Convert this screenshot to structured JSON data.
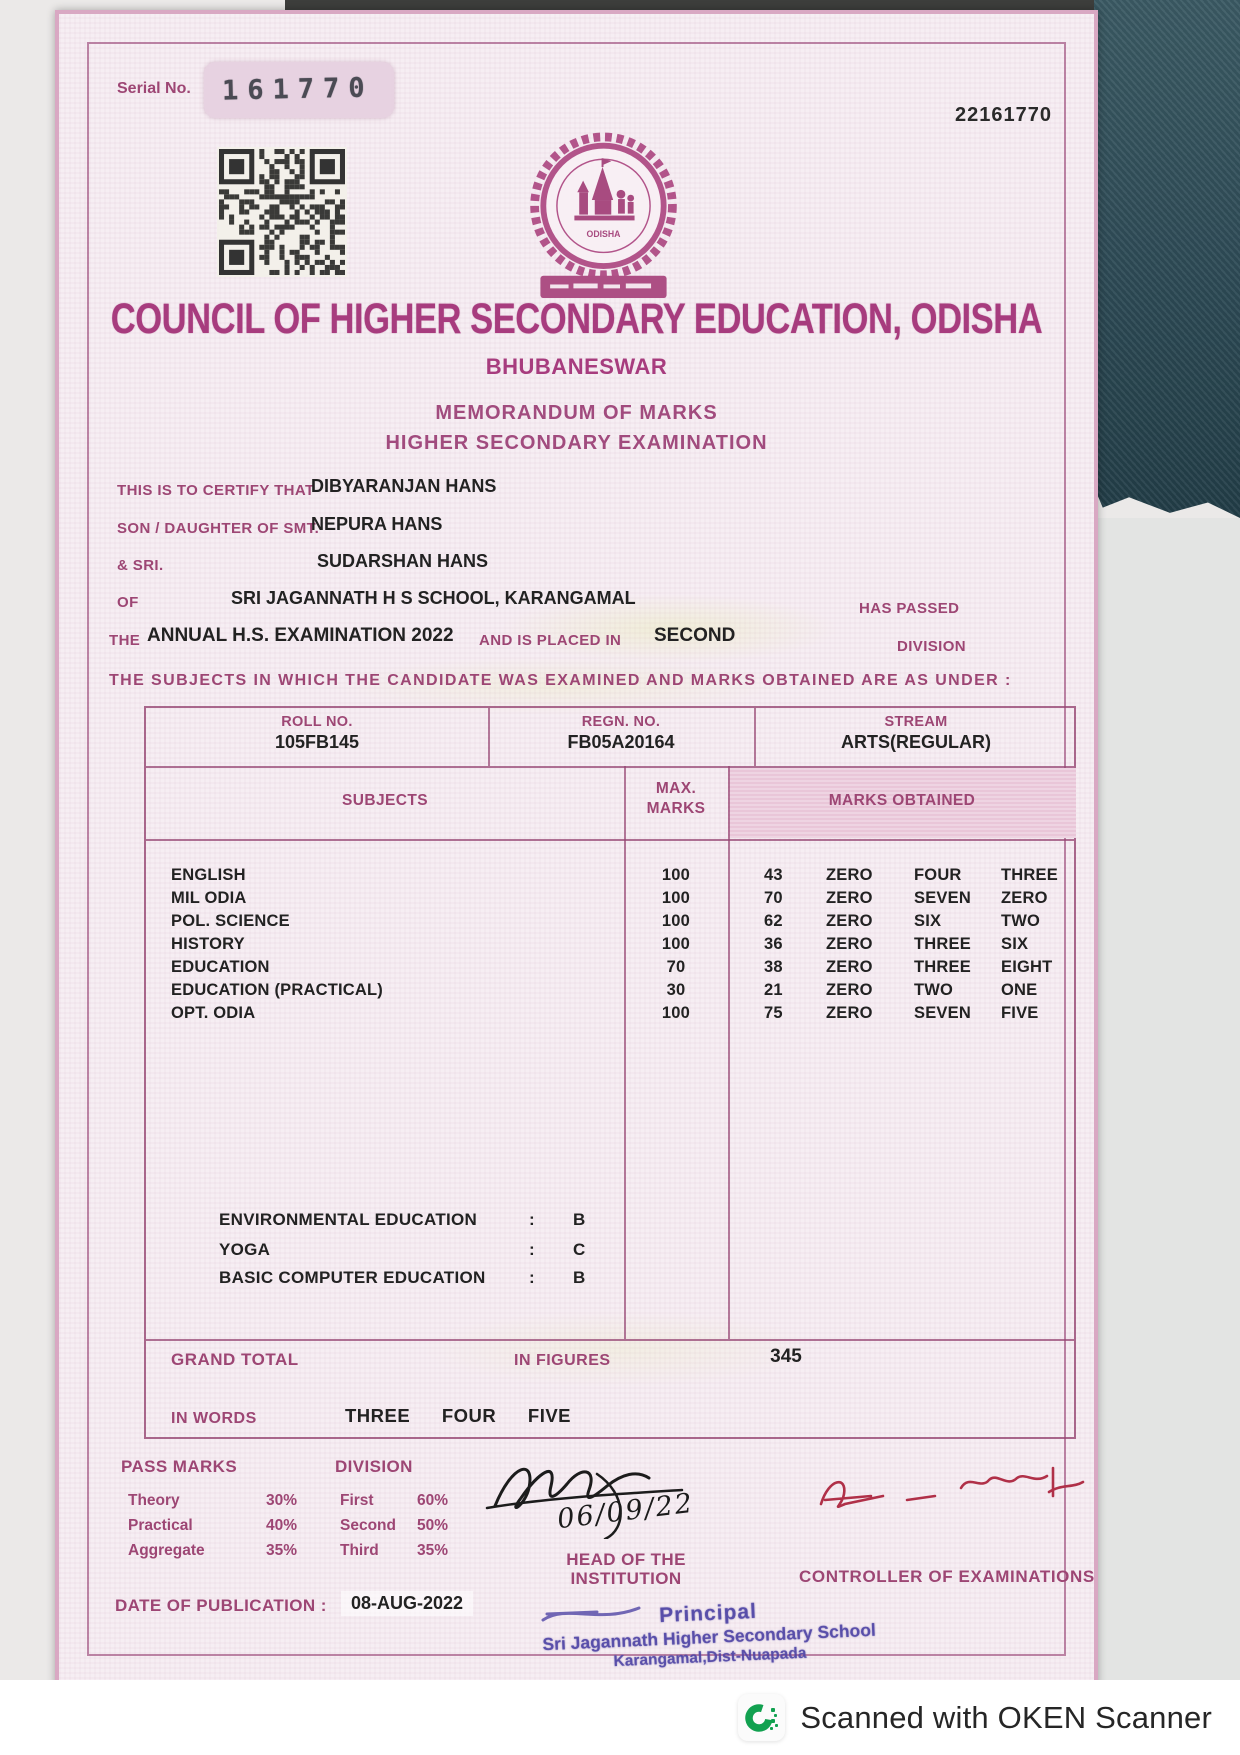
{
  "document": {
    "serial_label": "Serial No.",
    "serial_value": "161770",
    "ref_number": "22161770",
    "emblem_caption": "ODISHA",
    "council_name": "COUNCIL OF HIGHER SECONDARY EDUCATION, ODISHA",
    "city": "BHUBANESWAR",
    "memo_title": "MEMORANDUM OF MARKS",
    "exam_heading": "HIGHER SECONDARY EXAMINATION",
    "certify_label": "THIS IS TO CERTIFY THAT",
    "candidate_name": "DIBYARANJAN HANS",
    "mother_label": "SON / DAUGHTER OF SMT.",
    "mother_name": "NEPURA HANS",
    "father_label": "& SRI.",
    "father_name": "SUDARSHAN HANS",
    "of_label": "OF",
    "school_name": "SRI JAGANNATH H S SCHOOL, KARANGAMAL",
    "has_passed_label": "HAS PASSED",
    "the_label": "THE",
    "exam_name": "ANNUAL H.S. EXAMINATION 2022",
    "placed_in_label": "AND IS PLACED IN",
    "division_value": "SECOND",
    "division_label": "DIVISION",
    "subjects_intro": "THE SUBJECTS IN WHICH THE CANDIDATE WAS EXAMINED AND MARKS OBTAINED ARE AS UNDER :",
    "id_table": {
      "roll_label": "ROLL NO.",
      "roll_value": "105FB145",
      "regn_label": "REGN. NO.",
      "regn_value": "FB05A20164",
      "stream_label": "STREAM",
      "stream_value": "ARTS(REGULAR)"
    },
    "marks_table": {
      "col_subjects": "SUBJECTS",
      "col_max_line1": "MAX.",
      "col_max_line2": "MARKS",
      "col_obtained": "MARKS OBTAINED",
      "rows": [
        {
          "subject": "ENGLISH",
          "max": "100",
          "figures": "43",
          "w1": "ZERO",
          "w2": "FOUR",
          "w3": "THREE"
        },
        {
          "subject": "MIL ODIA",
          "max": "100",
          "figures": "70",
          "w1": "ZERO",
          "w2": "SEVEN",
          "w3": "ZERO"
        },
        {
          "subject": "POL. SCIENCE",
          "max": "100",
          "figures": "62",
          "w1": "ZERO",
          "w2": "SIX",
          "w3": "TWO"
        },
        {
          "subject": "HISTORY",
          "max": "100",
          "figures": "36",
          "w1": "ZERO",
          "w2": "THREE",
          "w3": "SIX"
        },
        {
          "subject": "EDUCATION",
          "max": "70",
          "figures": "38",
          "w1": "ZERO",
          "w2": "THREE",
          "w3": "EIGHT"
        },
        {
          "subject": "EDUCATION (PRACTICAL)",
          "max": "30",
          "figures": "21",
          "w1": "ZERO",
          "w2": "TWO",
          "w3": "ONE"
        },
        {
          "subject": "OPT. ODIA",
          "max": "100",
          "figures": "75",
          "w1": "ZERO",
          "w2": "SEVEN",
          "w3": "FIVE"
        }
      ]
    },
    "grades": [
      {
        "name": "ENVIRONMENTAL EDUCATION",
        "colon": ":",
        "grade": "B"
      },
      {
        "name": "YOGA",
        "colon": ":",
        "grade": "C"
      },
      {
        "name": "BASIC COMPUTER EDUCATION",
        "colon": ":",
        "grade": "B"
      }
    ],
    "totals": {
      "grand_total_label": "GRAND TOTAL",
      "in_figures_label": "IN FIGURES",
      "figures_value": "345",
      "in_words_label": "IN WORDS",
      "words_value": "THREE FOUR FIVE"
    },
    "footer": {
      "pass_marks_label": "PASS MARKS",
      "pass_rows": [
        {
          "label": "Theory",
          "value": "30%"
        },
        {
          "label": "Practical",
          "value": "40%"
        },
        {
          "label": "Aggregate",
          "value": "35%"
        }
      ],
      "division_label": "DIVISION",
      "division_rows": [
        {
          "label": "First",
          "value": "60%"
        },
        {
          "label": "Second",
          "value": "50%"
        },
        {
          "label": "Third",
          "value": "35%"
        }
      ],
      "head_sign_date": "06/09/22",
      "head_label_line1": "HEAD OF THE",
      "head_label_line2": "INSTITUTION",
      "controller_label": "CONTROLLER OF EXAMINATIONS",
      "date_label": "DATE OF PUBLICATION :",
      "date_value": "08-AUG-2022",
      "stamp_line1": "Principal",
      "stamp_line2": "Sri Jagannath Higher Secondary School",
      "stamp_line3": "Karangamal,Dist-Nuapada"
    }
  },
  "scanner": {
    "label": "Scanned with OKEN Scanner"
  },
  "colors": {
    "maroon": "#9d4674",
    "title": "#a73c7e",
    "ink": "#222222",
    "stamp_blue": "#5045a5",
    "oken_green": "#12a150",
    "band_pink": "#e9c6d8"
  }
}
